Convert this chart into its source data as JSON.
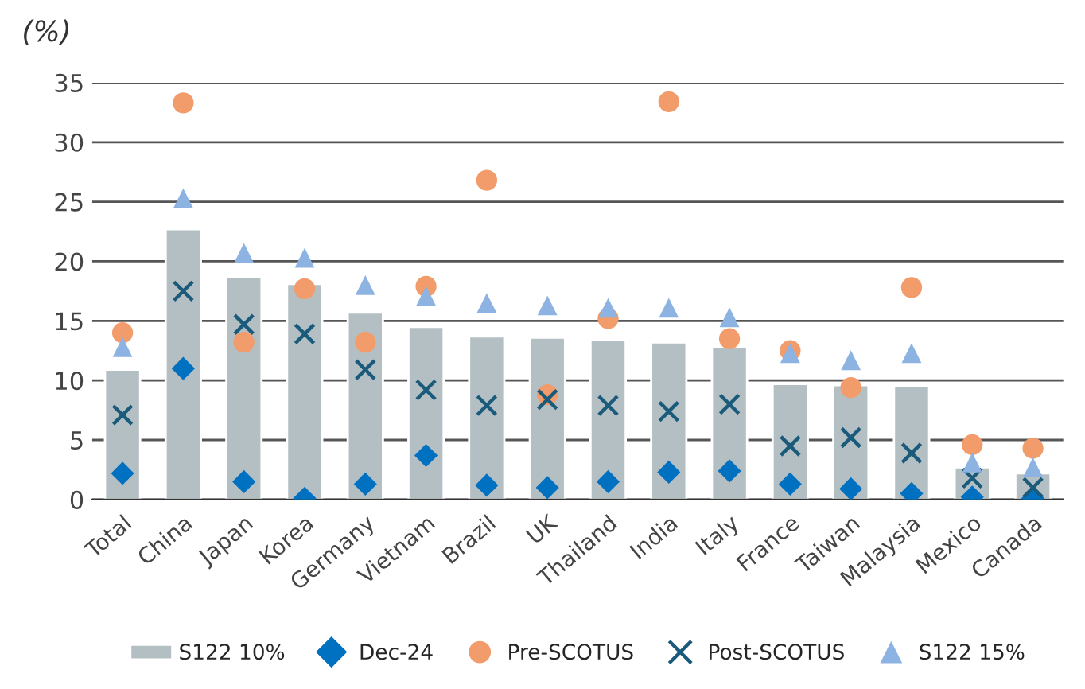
{
  "chart_data": {
    "type": "bar",
    "ylabel": "(%)",
    "categories": [
      "Total",
      "China",
      "Japan",
      "Korea",
      "Germany",
      "Vietnam",
      "Brazil",
      "UK",
      "Thailand",
      "India",
      "Italy",
      "France",
      "Taiwan",
      "Malaysia",
      "Mexico",
      "Canada"
    ],
    "series": [
      {
        "name": "S122 10%",
        "color": "#b4bfc3",
        "values": [
          10.9,
          22.7,
          18.7,
          18.1,
          15.7,
          14.5,
          13.7,
          13.6,
          13.4,
          13.2,
          12.8,
          9.7,
          9.6,
          9.5,
          2.7,
          2.2
        ]
      },
      {
        "name": "Dec-24",
        "type": "scatter",
        "marker": "diamond",
        "color": "#0070c0",
        "values": [
          2.2,
          11.0,
          1.5,
          0.1,
          1.3,
          3.7,
          1.2,
          1.0,
          1.5,
          2.3,
          2.4,
          1.3,
          0.9,
          0.5,
          0.2,
          0.1
        ]
      },
      {
        "name": "Pre-SCOTUS",
        "type": "scatter",
        "marker": "circle",
        "color": "#f29b6b",
        "values": [
          14.0,
          33.3,
          13.2,
          17.7,
          13.2,
          17.9,
          26.8,
          8.8,
          15.2,
          33.4,
          13.5,
          12.5,
          9.4,
          17.8,
          4.6,
          4.3
        ]
      },
      {
        "name": "Post-SCOTUS",
        "type": "scatter",
        "marker": "cross",
        "color": "#1a5a7a",
        "values": [
          7.1,
          17.5,
          14.7,
          13.9,
          10.9,
          9.2,
          7.9,
          8.4,
          7.9,
          7.4,
          8.0,
          4.5,
          5.2,
          3.9,
          1.8,
          1.0
        ]
      },
      {
        "name": "S122 15%",
        "type": "scatter",
        "marker": "triangle",
        "color": "#8db3e2",
        "values": [
          12.8,
          25.3,
          20.7,
          20.3,
          18.0,
          17.1,
          16.5,
          16.3,
          16.1,
          16.1,
          15.3,
          12.3,
          11.7,
          12.3,
          3.1,
          2.7
        ]
      }
    ],
    "ylim": [
      0,
      35
    ],
    "yticks": [
      0,
      5,
      10,
      15,
      20,
      25,
      30,
      35
    ],
    "grid": "y",
    "legend": "bottom"
  }
}
